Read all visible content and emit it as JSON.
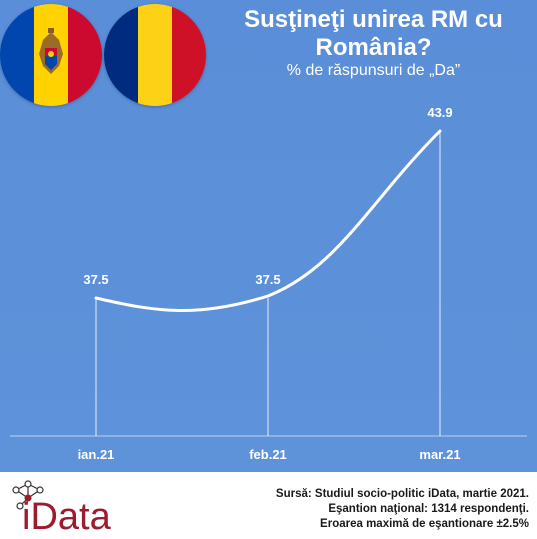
{
  "header": {
    "title": "Susţineţi unirea RM cu România?",
    "subtitle": "% de răspunsuri de „Da”"
  },
  "flags": {
    "moldova": {
      "colors": [
        "#0046ae",
        "#ffd200",
        "#cc092f"
      ]
    },
    "romania": {
      "colors": [
        "#002b7f",
        "#fcd116",
        "#ce1126"
      ]
    }
  },
  "chart_data": {
    "type": "line",
    "categories": [
      "ian.21",
      "feb.21",
      "mar.21"
    ],
    "series": [
      {
        "values": [
          37.5,
          37.5,
          43.9
        ]
      }
    ],
    "data_labels": [
      "37.5",
      "37.5",
      "43.9"
    ],
    "title": "Susţineţi unirea RM cu România?",
    "subtitle": "% de răspunsuri de „Da”",
    "xlabel": "",
    "ylabel": "",
    "grid": false,
    "line_color": "#ffffff",
    "background": "#5b8fd6"
  },
  "footer": {
    "source": "Sursă: Studiul socio-politic iData, martie 2021.",
    "sample": "Eşantion naţional: 1314 respondenţi.",
    "margin": "Eroarea maximă de eşantionare ±2.5%",
    "logo_text": "iData",
    "logo_color": "#9c1b2c"
  }
}
